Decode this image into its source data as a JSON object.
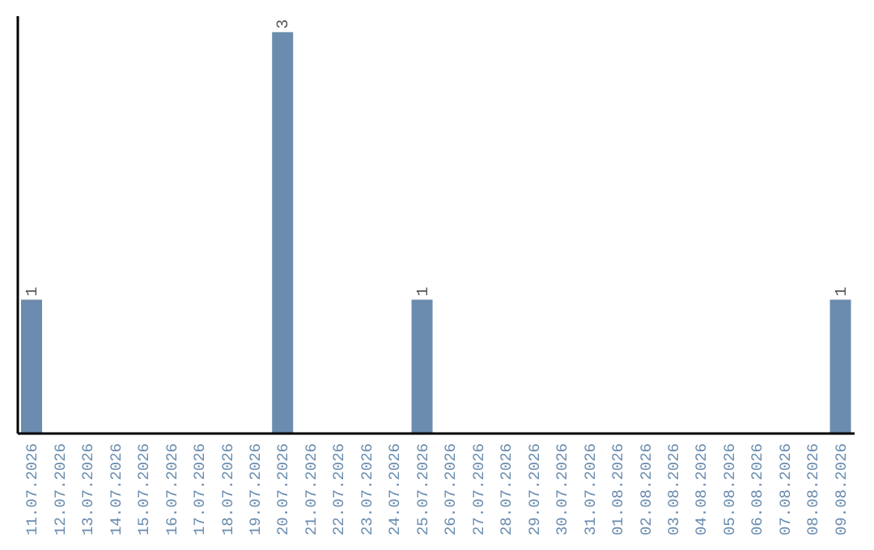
{
  "chart_data": {
    "type": "bar",
    "categories": [
      "11.07.2026",
      "12.07.2026",
      "13.07.2026",
      "14.07.2026",
      "15.07.2026",
      "16.07.2026",
      "17.07.2026",
      "18.07.2026",
      "19.07.2026",
      "20.07.2026",
      "21.07.2026",
      "22.07.2026",
      "23.07.2026",
      "24.07.2026",
      "25.07.2026",
      "26.07.2026",
      "27.07.2026",
      "28.07.2026",
      "29.07.2026",
      "30.07.2026",
      "31.07.2026",
      "01.08.2026",
      "02.08.2026",
      "03.08.2026",
      "04.08.2026",
      "05.08.2026",
      "06.08.2026",
      "07.08.2026",
      "08.08.2026",
      "09.08.2026"
    ],
    "values": [
      1,
      0,
      0,
      0,
      0,
      0,
      0,
      0,
      0,
      3,
      0,
      0,
      0,
      0,
      1,
      0,
      0,
      0,
      0,
      0,
      0,
      0,
      0,
      0,
      0,
      0,
      0,
      0,
      0,
      1
    ],
    "value_labels": [
      "1",
      null,
      null,
      null,
      null,
      null,
      null,
      null,
      null,
      "3",
      null,
      null,
      null,
      null,
      "1",
      null,
      null,
      null,
      null,
      null,
      null,
      null,
      null,
      null,
      null,
      null,
      null,
      null,
      null,
      "1"
    ],
    "color": "#6b8cae",
    "grid": false,
    "legend": false
  }
}
